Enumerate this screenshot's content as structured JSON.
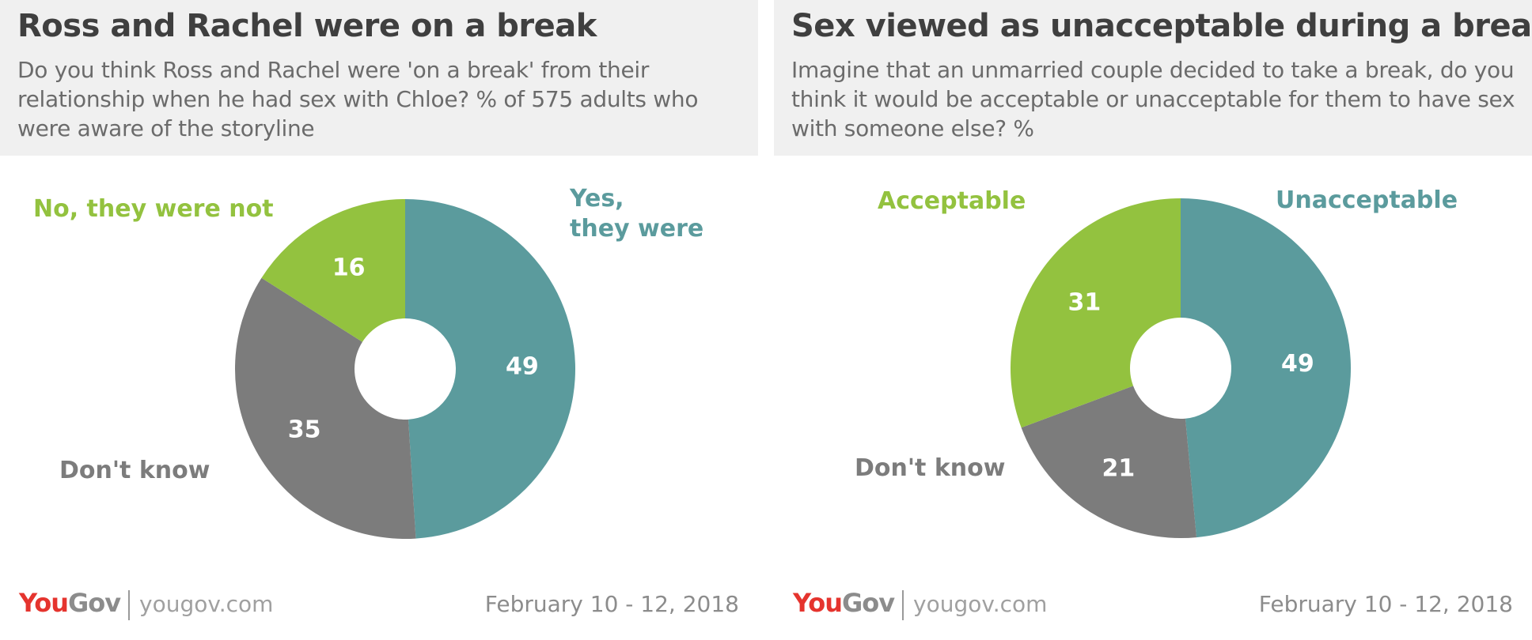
{
  "colors": {
    "yes": "#5b9b9d",
    "no": "#93c23f",
    "dont_know": "#7c7c7c",
    "header_bg": "#f0f0f0"
  },
  "footer": {
    "brand_you": "You",
    "brand_gov": "Gov",
    "site": "yougov.com",
    "date": "February 10 - 12, 2018"
  },
  "chart_data": [
    {
      "type": "pie",
      "donut": true,
      "title": "Ross and Rachel were on a break",
      "subtitle": "Do you think Ross and Rachel were 'on a break' from their relationship when he had sex with Chloe? % of 575 adults who were aware of the storyline",
      "slices": [
        {
          "label": "Yes, they were",
          "value": 49,
          "color": "#5b9b9d"
        },
        {
          "label": "Don't know",
          "value": 35,
          "color": "#7c7c7c"
        },
        {
          "label": "No, they were not",
          "value": 16,
          "color": "#93c23f"
        }
      ]
    },
    {
      "type": "pie",
      "donut": true,
      "title": "Sex viewed as unacceptable during a break",
      "subtitle": "Imagine that an unmarried couple decided to take a break, do you think it would be acceptable or unacceptable for them to have sex with someone else? %",
      "slices": [
        {
          "label": "Unacceptable",
          "value": 49,
          "color": "#5b9b9d"
        },
        {
          "label": "Don't know",
          "value": 21,
          "color": "#7c7c7c"
        },
        {
          "label": "Acceptable",
          "value": 31,
          "color": "#93c23f"
        }
      ]
    }
  ]
}
